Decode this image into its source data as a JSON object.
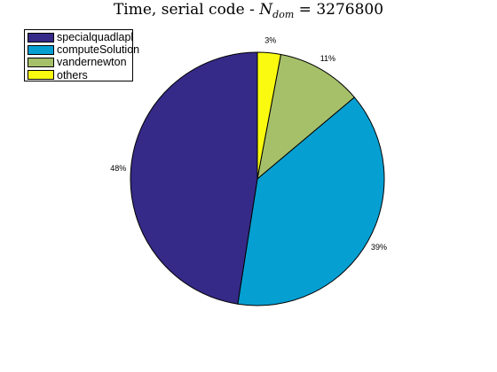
{
  "chart_data": {
    "type": "pie",
    "title_prefix": "Time, serial code - ",
    "title_var": "N",
    "title_sub": "dom",
    "title_suffix": " = 3276800",
    "legend_position": "top-left",
    "slices": [
      {
        "name": "specialquadlapl",
        "value": 48,
        "label": "48%",
        "color": "#352a87"
      },
      {
        "name": "computeSolution",
        "value": 39,
        "label": "39%",
        "color": "#069fd2"
      },
      {
        "name": "vandernewton",
        "value": 11,
        "label": "11%",
        "color": "#a6c06a"
      },
      {
        "name": "others",
        "value": 3,
        "label": "3%",
        "color": "#f9fa0f"
      }
    ]
  }
}
